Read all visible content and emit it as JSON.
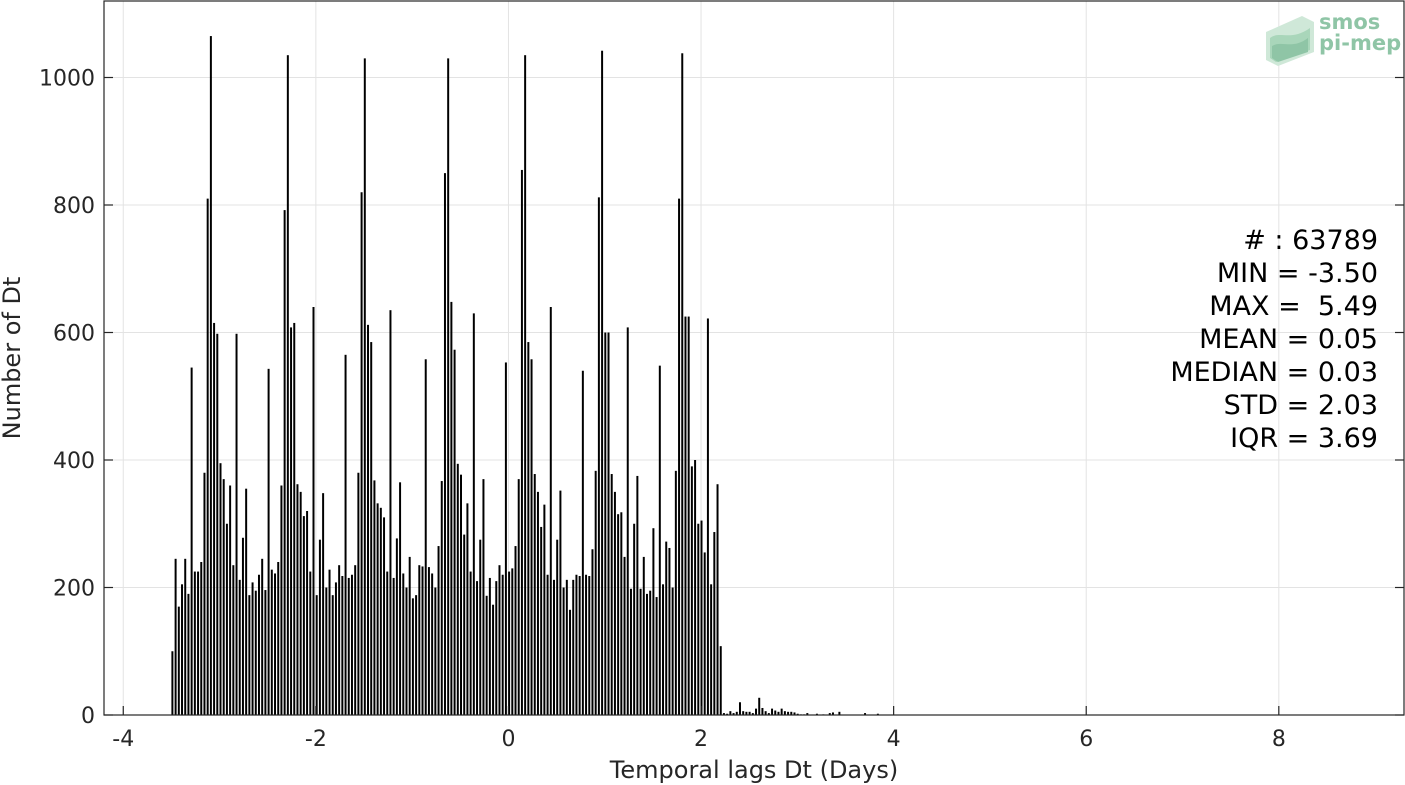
{
  "chart_data": {
    "type": "bar",
    "title": "",
    "xlabel": "Temporal lags Dt (Days)",
    "ylabel": "Number of Dt",
    "xlim": [
      -4.2,
      9.3
    ],
    "ylim": [
      0,
      1120
    ],
    "xticks": [
      "-4",
      "-2",
      "0",
      "2",
      "4",
      "6",
      "8"
    ],
    "yticks": [
      "0",
      "200",
      "400",
      "600",
      "800",
      "1000"
    ],
    "grid": true,
    "bin_width": 0.0333,
    "x_start": -3.5,
    "values": [
      100,
      245,
      170,
      205,
      245,
      190,
      545,
      225,
      225,
      240,
      380,
      810,
      1065,
      615,
      598,
      395,
      370,
      300,
      360,
      235,
      598,
      212,
      278,
      355,
      188,
      208,
      195,
      220,
      245,
      196,
      543,
      228,
      222,
      240,
      360,
      792,
      1035,
      608,
      615,
      362,
      350,
      312,
      320,
      225,
      640,
      188,
      275,
      348,
      200,
      228,
      188,
      208,
      235,
      218,
      565,
      215,
      220,
      235,
      380,
      820,
      1030,
      612,
      585,
      368,
      332,
      325,
      310,
      225,
      635,
      215,
      277,
      365,
      222,
      200,
      248,
      183,
      188,
      235,
      233,
      558,
      232,
      222,
      200,
      265,
      367,
      850,
      1030,
      648,
      573,
      394,
      377,
      283,
      332,
      225,
      630,
      210,
      275,
      370,
      187,
      215,
      173,
      210,
      235,
      220,
      553,
      225,
      230,
      265,
      370,
      855,
      1035,
      585,
      558,
      378,
      350,
      295,
      330,
      220,
      640,
      212,
      275,
      352,
      200,
      212,
      165,
      212,
      220,
      218,
      540,
      220,
      218,
      260,
      383,
      812,
      1042,
      600,
      600,
      378,
      350,
      315,
      318,
      248,
      608,
      198,
      300,
      375,
      198,
      248,
      190,
      195,
      293,
      185,
      548,
      205,
      272,
      262,
      200,
      383,
      810,
      1038,
      625,
      625,
      390,
      400,
      300,
      305,
      255,
      622,
      205,
      287,
      362,
      108,
      3,
      2,
      6,
      3,
      5,
      20,
      6,
      5,
      5,
      3,
      10,
      27,
      11,
      6,
      3,
      10,
      7,
      5,
      10,
      6,
      5,
      5,
      4,
      2,
      1,
      1,
      3,
      0,
      0,
      2,
      0,
      1,
      0,
      3,
      4,
      0,
      5,
      0,
      0,
      0,
      0,
      0,
      0,
      0,
      3,
      0,
      0,
      0,
      2
    ]
  },
  "stats": {
    "count": "# : 63789",
    "min": "MIN = -3.50",
    "max": "MAX =  5.49",
    "mean": "MEAN = 0.05",
    "median": "MEDIAN = 0.03",
    "std": "STD = 2.03",
    "iqr": "IQR = 3.69"
  },
  "logo": {
    "line1": "smos",
    "line2": "pi-mep",
    "color": "#8fc5a6"
  }
}
